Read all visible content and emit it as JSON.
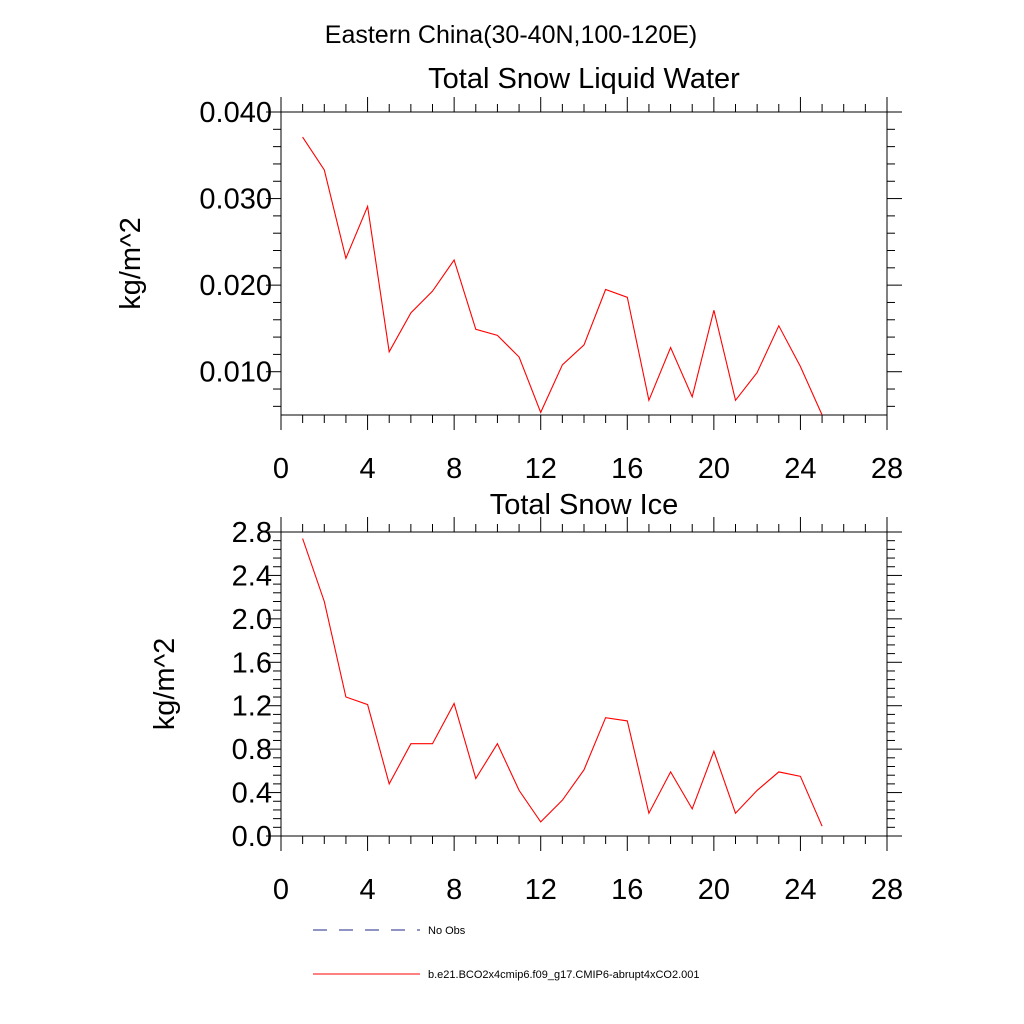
{
  "figure": {
    "suptitle": "Eastern China(30-40N,100-120E)"
  },
  "legend": {
    "placement": "bottom",
    "entries": [
      {
        "label": "No Obs",
        "color": "#1f2a8a",
        "style": "dashed"
      },
      {
        "label": "b.e21.BCO2x4cmip6.f09_g17.CMIP6-abrupt4xCO2.001",
        "color": "#ff0000",
        "style": "solid"
      }
    ]
  },
  "chart_data": [
    {
      "type": "line",
      "title": "Total Snow Liquid Water",
      "xlabel": "",
      "ylabel": "kg/m^2",
      "xlim": [
        0,
        28
      ],
      "ylim": [
        0.005,
        0.04
      ],
      "xticks": [
        0,
        4,
        8,
        12,
        16,
        20,
        24,
        28
      ],
      "xtick_labels": [
        "0",
        "4",
        "8",
        "12",
        "16",
        "20",
        "24",
        "28"
      ],
      "yticks": [
        0.01,
        0.02,
        0.03,
        0.04
      ],
      "ytick_labels": [
        "0.010",
        "0.020",
        "0.030",
        "0.040"
      ],
      "grid": false,
      "series": [
        {
          "name": "b.e21.BCO2x4cmip6.f09_g17.CMIP6-abrupt4xCO2.001",
          "color": "#ff0000",
          "x": [
            1,
            2,
            3,
            4,
            5,
            6,
            7,
            8,
            9,
            10,
            11,
            12,
            13,
            14,
            15,
            16,
            17,
            18,
            19,
            20,
            21,
            22,
            23,
            24,
            25
          ],
          "y": [
            0.0371,
            0.0333,
            0.0231,
            0.0291,
            0.0123,
            0.0168,
            0.0193,
            0.0229,
            0.0149,
            0.0142,
            0.0117,
            0.0053,
            0.0108,
            0.0131,
            0.0195,
            0.0186,
            0.0067,
            0.0128,
            0.0071,
            0.0171,
            0.0067,
            0.0099,
            0.0153,
            0.0106,
            0.005
          ]
        }
      ]
    },
    {
      "type": "line",
      "title": "Total Snow Ice",
      "xlabel": "",
      "ylabel": "kg/m^2",
      "xlim": [
        0,
        28
      ],
      "ylim": [
        0,
        2.8
      ],
      "xticks": [
        0,
        4,
        8,
        12,
        16,
        20,
        24,
        28
      ],
      "xtick_labels": [
        "0",
        "4",
        "8",
        "12",
        "16",
        "20",
        "24",
        "28"
      ],
      "yticks": [
        0,
        0.4,
        0.8,
        1.2,
        1.6,
        2.0,
        2.4,
        2.8
      ],
      "ytick_labels": [
        "0.0",
        "0.4",
        "0.8",
        "1.2",
        "1.6",
        "2.0",
        "2.4",
        "2.8"
      ],
      "grid": false,
      "series": [
        {
          "name": "b.e21.BCO2x4cmip6.f09_g17.CMIP6-abrupt4xCO2.001",
          "color": "#ff0000",
          "x": [
            1,
            2,
            3,
            4,
            5,
            6,
            7,
            8,
            9,
            10,
            11,
            12,
            13,
            14,
            15,
            16,
            17,
            18,
            19,
            20,
            21,
            22,
            23,
            24,
            25
          ],
          "y": [
            2.74,
            2.16,
            1.28,
            1.21,
            0.48,
            0.85,
            0.85,
            1.22,
            0.53,
            0.85,
            0.42,
            0.13,
            0.33,
            0.61,
            1.09,
            1.06,
            0.21,
            0.59,
            0.25,
            0.78,
            0.21,
            0.42,
            0.59,
            0.55,
            0.09
          ]
        }
      ]
    }
  ]
}
